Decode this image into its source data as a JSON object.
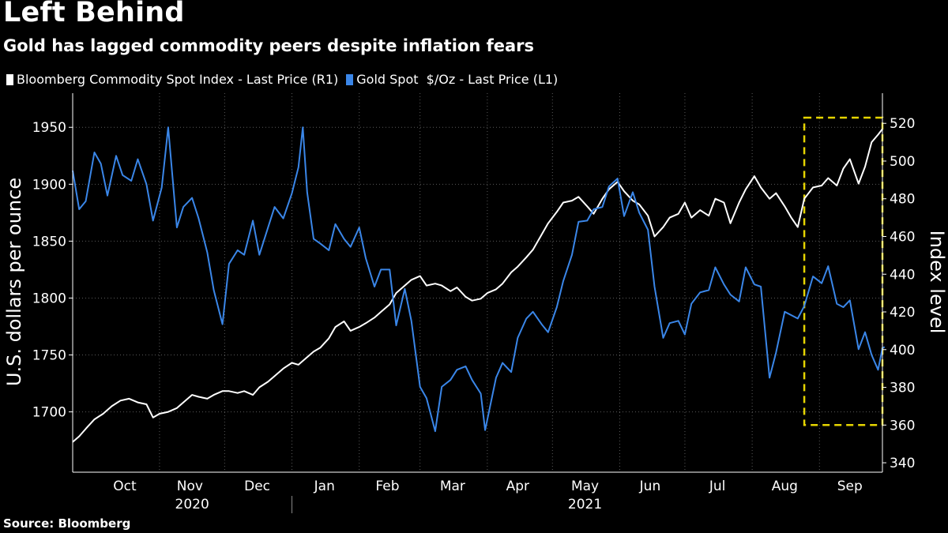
{
  "header": {
    "title": "Left Behind",
    "subtitle": "Gold has lagged commodity peers despite inflation fears"
  },
  "footer": {
    "source": "Source: Bloomberg"
  },
  "colors": {
    "background": "#000000",
    "commodity": "#ffffff",
    "gold": "#3a86e8",
    "highlight_box": "#e5d400",
    "grid": "#5a5a5a"
  },
  "chart_data": {
    "type": "line",
    "title": "Left Behind",
    "subtitle": "Gold has lagged commodity peers despite inflation fears",
    "xlabel": "",
    "ylabel_left": "U.S. dollars per ounce",
    "ylabel_right": "Index level",
    "ylim_left": [
      1647,
      1980
    ],
    "ylim_right": [
      335,
      536
    ],
    "yticks_left": [
      1700,
      1750,
      1800,
      1850,
      1900,
      1950
    ],
    "yticks_right": [
      340,
      360,
      380,
      400,
      420,
      440,
      460,
      480,
      500,
      520
    ],
    "x_range": [
      "2020-09-22",
      "2021-09-30"
    ],
    "x_month_labels": [
      {
        "label": "Oct",
        "date": "2020-10-16"
      },
      {
        "label": "Nov",
        "date": "2020-11-15"
      },
      {
        "label": "Dec",
        "date": "2020-12-16"
      },
      {
        "label": "Jan",
        "date": "2021-01-16"
      },
      {
        "label": "Feb",
        "date": "2021-02-14"
      },
      {
        "label": "Mar",
        "date": "2021-03-16"
      },
      {
        "label": "Apr",
        "date": "2021-04-15"
      },
      {
        "label": "May",
        "date": "2021-05-16"
      },
      {
        "label": "Jun",
        "date": "2021-06-15"
      },
      {
        "label": "Jul",
        "date": "2021-07-16"
      },
      {
        "label": "Aug",
        "date": "2021-08-16"
      },
      {
        "label": "Sep",
        "date": "2021-09-15"
      }
    ],
    "x_year_labels": [
      {
        "label": "2020",
        "date": "2020-11-16"
      },
      {
        "label": "2021",
        "date": "2021-05-16"
      }
    ],
    "grid": true,
    "legend_position": "top-left",
    "highlight_box": {
      "x_start": "2021-08-25",
      "x_end": "2021-09-30",
      "y_low_right": 360,
      "y_high_right": 523
    },
    "series": [
      {
        "name": "Bloomberg Commodity Spot Index - Last Price (R1)",
        "axis": "right",
        "color": "#ffffff",
        "points": [
          [
            "2020-09-22",
            351
          ],
          [
            "2020-09-25",
            354
          ],
          [
            "2020-09-28",
            358
          ],
          [
            "2020-10-02",
            363
          ],
          [
            "2020-10-06",
            366
          ],
          [
            "2020-10-10",
            370
          ],
          [
            "2020-10-14",
            373
          ],
          [
            "2020-10-18",
            374
          ],
          [
            "2020-10-22",
            372
          ],
          [
            "2020-10-26",
            371
          ],
          [
            "2020-10-29",
            364
          ],
          [
            "2020-11-01",
            366
          ],
          [
            "2020-11-05",
            367
          ],
          [
            "2020-11-09",
            369
          ],
          [
            "2020-11-12",
            372
          ],
          [
            "2020-11-16",
            376
          ],
          [
            "2020-11-19",
            375
          ],
          [
            "2020-11-23",
            374
          ],
          [
            "2020-11-26",
            376
          ],
          [
            "2020-11-30",
            378
          ],
          [
            "2020-12-03",
            378
          ],
          [
            "2020-12-07",
            377
          ],
          [
            "2020-12-10",
            378
          ],
          [
            "2020-12-14",
            376
          ],
          [
            "2020-12-17",
            380
          ],
          [
            "2020-12-21",
            383
          ],
          [
            "2020-12-24",
            386
          ],
          [
            "2020-12-28",
            390
          ],
          [
            "2021-01-01",
            393
          ],
          [
            "2021-01-04",
            392
          ],
          [
            "2021-01-07",
            395
          ],
          [
            "2021-01-11",
            399
          ],
          [
            "2021-01-14",
            401
          ],
          [
            "2021-01-18",
            406
          ],
          [
            "2021-01-21",
            412
          ],
          [
            "2021-01-25",
            415
          ],
          [
            "2021-01-28",
            410
          ],
          [
            "2021-02-01",
            412
          ],
          [
            "2021-02-04",
            414
          ],
          [
            "2021-02-08",
            417
          ],
          [
            "2021-02-11",
            420
          ],
          [
            "2021-02-15",
            424
          ],
          [
            "2021-02-18",
            430
          ],
          [
            "2021-02-22",
            434
          ],
          [
            "2021-02-25",
            437
          ],
          [
            "2021-03-01",
            439
          ],
          [
            "2021-03-04",
            434
          ],
          [
            "2021-03-08",
            435
          ],
          [
            "2021-03-11",
            434
          ],
          [
            "2021-03-15",
            431
          ],
          [
            "2021-03-18",
            433
          ],
          [
            "2021-03-22",
            428
          ],
          [
            "2021-03-25",
            426
          ],
          [
            "2021-03-29",
            427
          ],
          [
            "2021-04-01",
            430
          ],
          [
            "2021-04-05",
            432
          ],
          [
            "2021-04-08",
            435
          ],
          [
            "2021-04-12",
            441
          ],
          [
            "2021-04-15",
            444
          ],
          [
            "2021-04-19",
            449
          ],
          [
            "2021-04-22",
            453
          ],
          [
            "2021-04-26",
            461
          ],
          [
            "2021-04-29",
            467
          ],
          [
            "2021-05-03",
            473
          ],
          [
            "2021-05-06",
            478
          ],
          [
            "2021-05-10",
            479
          ],
          [
            "2021-05-13",
            481
          ],
          [
            "2021-05-17",
            476
          ],
          [
            "2021-05-20",
            472
          ],
          [
            "2021-05-24",
            480
          ],
          [
            "2021-05-27",
            485
          ],
          [
            "2021-05-31",
            489
          ],
          [
            "2021-06-03",
            484
          ],
          [
            "2021-06-07",
            479
          ],
          [
            "2021-06-10",
            477
          ],
          [
            "2021-06-14",
            471
          ],
          [
            "2021-06-17",
            460
          ],
          [
            "2021-06-21",
            465
          ],
          [
            "2021-06-24",
            470
          ],
          [
            "2021-06-28",
            472
          ],
          [
            "2021-07-01",
            478
          ],
          [
            "2021-07-04",
            470
          ],
          [
            "2021-07-08",
            474
          ],
          [
            "2021-07-12",
            471
          ],
          [
            "2021-07-15",
            480
          ],
          [
            "2021-07-19",
            478
          ],
          [
            "2021-07-22",
            467
          ],
          [
            "2021-07-26",
            478
          ],
          [
            "2021-07-29",
            485
          ],
          [
            "2021-08-02",
            492
          ],
          [
            "2021-08-05",
            486
          ],
          [
            "2021-08-09",
            480
          ],
          [
            "2021-08-12",
            483
          ],
          [
            "2021-08-16",
            476
          ],
          [
            "2021-08-19",
            470
          ],
          [
            "2021-08-22",
            465
          ],
          [
            "2021-08-25",
            480
          ],
          [
            "2021-08-29",
            486
          ],
          [
            "2021-09-02",
            487
          ],
          [
            "2021-09-05",
            491
          ],
          [
            "2021-09-09",
            487
          ],
          [
            "2021-09-12",
            496
          ],
          [
            "2021-09-15",
            501
          ],
          [
            "2021-09-19",
            488
          ],
          [
            "2021-09-22",
            497
          ],
          [
            "2021-09-25",
            510
          ],
          [
            "2021-09-28",
            514
          ],
          [
            "2021-09-30",
            517
          ]
        ]
      },
      {
        "name": "Gold Spot  $/Oz - Last Price (L1)",
        "axis": "left",
        "color": "#3a86e8",
        "points": [
          [
            "2020-09-22",
            1912
          ],
          [
            "2020-09-25",
            1878
          ],
          [
            "2020-09-28",
            1885
          ],
          [
            "2020-10-02",
            1928
          ],
          [
            "2020-10-05",
            1918
          ],
          [
            "2020-10-08",
            1890
          ],
          [
            "2020-10-12",
            1925
          ],
          [
            "2020-10-15",
            1908
          ],
          [
            "2020-10-19",
            1903
          ],
          [
            "2020-10-22",
            1922
          ],
          [
            "2020-10-26",
            1900
          ],
          [
            "2020-10-29",
            1868
          ],
          [
            "2020-11-02",
            1897
          ],
          [
            "2020-11-05",
            1950
          ],
          [
            "2020-11-09",
            1862
          ],
          [
            "2020-11-12",
            1880
          ],
          [
            "2020-11-16",
            1888
          ],
          [
            "2020-11-19",
            1870
          ],
          [
            "2020-11-23",
            1840
          ],
          [
            "2020-11-26",
            1807
          ],
          [
            "2020-11-30",
            1777
          ],
          [
            "2020-12-03",
            1830
          ],
          [
            "2020-12-07",
            1842
          ],
          [
            "2020-12-10",
            1838
          ],
          [
            "2020-12-14",
            1868
          ],
          [
            "2020-12-17",
            1838
          ],
          [
            "2020-12-21",
            1862
          ],
          [
            "2020-12-24",
            1880
          ],
          [
            "2020-12-28",
            1870
          ],
          [
            "2021-01-01",
            1892
          ],
          [
            "2021-01-04",
            1915
          ],
          [
            "2021-01-06",
            1950
          ],
          [
            "2021-01-08",
            1893
          ],
          [
            "2021-01-11",
            1852
          ],
          [
            "2021-01-14",
            1848
          ],
          [
            "2021-01-18",
            1842
          ],
          [
            "2021-01-21",
            1865
          ],
          [
            "2021-01-25",
            1852
          ],
          [
            "2021-01-28",
            1845
          ],
          [
            "2021-02-01",
            1862
          ],
          [
            "2021-02-04",
            1835
          ],
          [
            "2021-02-08",
            1810
          ],
          [
            "2021-02-11",
            1825
          ],
          [
            "2021-02-15",
            1825
          ],
          [
            "2021-02-18",
            1776
          ],
          [
            "2021-02-22",
            1808
          ],
          [
            "2021-02-25",
            1780
          ],
          [
            "2021-03-01",
            1722
          ],
          [
            "2021-03-04",
            1712
          ],
          [
            "2021-03-08",
            1683
          ],
          [
            "2021-03-11",
            1722
          ],
          [
            "2021-03-15",
            1728
          ],
          [
            "2021-03-18",
            1737
          ],
          [
            "2021-03-22",
            1740
          ],
          [
            "2021-03-25",
            1728
          ],
          [
            "2021-03-29",
            1716
          ],
          [
            "2021-03-31",
            1684
          ],
          [
            "2021-04-05",
            1730
          ],
          [
            "2021-04-08",
            1743
          ],
          [
            "2021-04-12",
            1735
          ],
          [
            "2021-04-15",
            1765
          ],
          [
            "2021-04-19",
            1782
          ],
          [
            "2021-04-22",
            1788
          ],
          [
            "2021-04-26",
            1777
          ],
          [
            "2021-04-29",
            1770
          ],
          [
            "2021-05-03",
            1792
          ],
          [
            "2021-05-06",
            1815
          ],
          [
            "2021-05-10",
            1838
          ],
          [
            "2021-05-13",
            1867
          ],
          [
            "2021-05-17",
            1868
          ],
          [
            "2021-05-20",
            1878
          ],
          [
            "2021-05-24",
            1880
          ],
          [
            "2021-05-27",
            1898
          ],
          [
            "2021-05-31",
            1905
          ],
          [
            "2021-06-03",
            1872
          ],
          [
            "2021-06-07",
            1893
          ],
          [
            "2021-06-10",
            1875
          ],
          [
            "2021-06-14",
            1860
          ],
          [
            "2021-06-17",
            1810
          ],
          [
            "2021-06-21",
            1765
          ],
          [
            "2021-06-24",
            1778
          ],
          [
            "2021-06-28",
            1780
          ],
          [
            "2021-07-01",
            1768
          ],
          [
            "2021-07-04",
            1795
          ],
          [
            "2021-07-08",
            1805
          ],
          [
            "2021-07-12",
            1807
          ],
          [
            "2021-07-15",
            1827
          ],
          [
            "2021-07-19",
            1812
          ],
          [
            "2021-07-22",
            1803
          ],
          [
            "2021-07-26",
            1797
          ],
          [
            "2021-07-29",
            1827
          ],
          [
            "2021-08-02",
            1812
          ],
          [
            "2021-08-05",
            1810
          ],
          [
            "2021-08-09",
            1730
          ],
          [
            "2021-08-12",
            1752
          ],
          [
            "2021-08-16",
            1788
          ],
          [
            "2021-08-19",
            1785
          ],
          [
            "2021-08-22",
            1782
          ],
          [
            "2021-08-25",
            1793
          ],
          [
            "2021-08-29",
            1819
          ],
          [
            "2021-09-02",
            1813
          ],
          [
            "2021-09-05",
            1828
          ],
          [
            "2021-09-09",
            1795
          ],
          [
            "2021-09-12",
            1792
          ],
          [
            "2021-09-15",
            1798
          ],
          [
            "2021-09-19",
            1755
          ],
          [
            "2021-09-22",
            1770
          ],
          [
            "2021-09-25",
            1750
          ],
          [
            "2021-09-28",
            1737
          ],
          [
            "2021-09-30",
            1756
          ],
          [
            "2021-10-01",
            1757
          ]
        ]
      }
    ]
  }
}
